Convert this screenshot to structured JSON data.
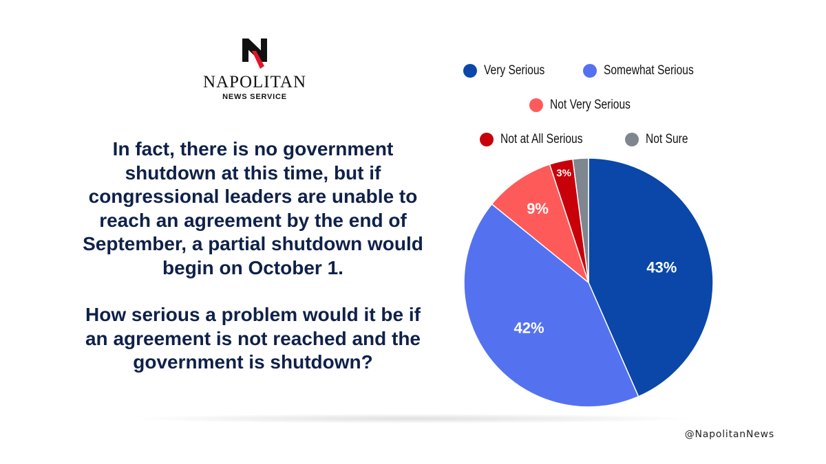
{
  "brand": {
    "name": "NAPOLITAN",
    "subtitle": "NEWS SERVICE",
    "handle": "@NapolitanNews"
  },
  "question": {
    "intro": "In fact, there is no government shutdown at this time, but if congressional leaders are unable to reach an agreement by the end of September, a partial shutdown would begin on October 1.",
    "ask": "How serious a problem would it be if an agreement is not reached and the government is shutdown?"
  },
  "chart_data": {
    "type": "pie",
    "categories": [
      "Very Serious",
      "Somewhat Serious",
      "Not Very Serious",
      "Not at All Serious",
      "Not Sure"
    ],
    "values": [
      43,
      42,
      9,
      3,
      2
    ],
    "labels": [
      "43%",
      "42%",
      "9%",
      "3%",
      ""
    ],
    "colors": [
      "#0a47a9",
      "#5472f0",
      "#ff5a5a",
      "#c8000a",
      "#7f8690"
    ],
    "legend": {
      "placement": "top",
      "rows": [
        [
          0,
          1
        ],
        [
          2
        ],
        [
          3,
          4
        ]
      ]
    }
  }
}
